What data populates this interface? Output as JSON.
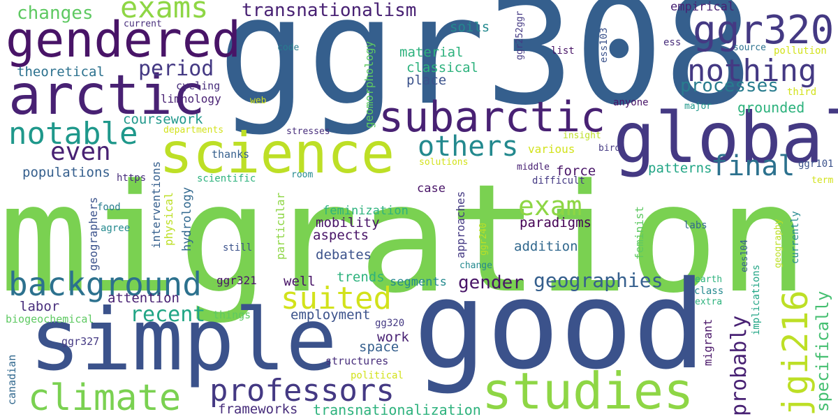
{
  "palette": {
    "yellow": "#d2e21b",
    "yellow_green": "#bddf26",
    "light_green": "#8ed645",
    "green": "#7ad151",
    "mid_green": "#5ec962",
    "green_teal": "#44bf70",
    "teal_green": "#2db27d",
    "teal": "#21a585",
    "teal_blue": "#1f988b",
    "blue_teal": "#23898e",
    "steel_blue": "#287c8e",
    "slate_blue": "#2c718e",
    "blue": "#31688e",
    "dark_blue": "#355f8d",
    "navy": "#3b528b",
    "indigo": "#404688",
    "dark_indigo": "#443983",
    "violet": "#472d7b",
    "deep_violet": "#482173",
    "dark_purple": "#481467",
    "deepest": "#440154"
  },
  "words": [
    {
      "text": "migration",
      "color": "green"
    },
    {
      "text": "ggr308",
      "color": "dark_blue"
    },
    {
      "text": "good",
      "color": "navy"
    },
    {
      "text": "simple",
      "color": "navy"
    },
    {
      "text": "science",
      "color": "yellow_green"
    },
    {
      "text": "global",
      "color": "dark_indigo"
    },
    {
      "text": "arctic",
      "color": "deep_violet"
    },
    {
      "text": "gendered",
      "color": "dark_purple"
    },
    {
      "text": "subarctic",
      "color": "deep_violet"
    },
    {
      "text": "studies",
      "color": "light_green"
    },
    {
      "text": "climate",
      "color": "green"
    },
    {
      "text": "professors",
      "color": "dark_indigo"
    },
    {
      "text": "ggr320",
      "color": "dark_indigo"
    },
    {
      "text": "background",
      "color": "slate_blue"
    },
    {
      "text": "jgi216",
      "color": "yellow_green"
    },
    {
      "text": "exams",
      "color": "light_green"
    },
    {
      "text": "nothing",
      "color": "dark_indigo"
    },
    {
      "text": "notable",
      "color": "teal_blue"
    },
    {
      "text": "suited",
      "color": "yellow"
    },
    {
      "text": "others",
      "color": "blue_teal"
    },
    {
      "text": "exam",
      "color": "light_green"
    },
    {
      "text": "final",
      "color": "slate_blue"
    },
    {
      "text": "probably",
      "color": "deep_violet"
    },
    {
      "text": "even",
      "color": "deep_violet"
    },
    {
      "text": "geographies",
      "color": "dark_blue"
    },
    {
      "text": "transnationalism",
      "color": "deep_violet"
    },
    {
      "text": "period",
      "color": "dark_indigo"
    },
    {
      "text": "specifically",
      "color": "green_teal"
    },
    {
      "text": "recent",
      "color": "teal"
    },
    {
      "text": "gender",
      "color": "dark_purple"
    },
    {
      "text": "processes",
      "color": "steel_blue"
    },
    {
      "text": "changes",
      "color": "mid_green"
    },
    {
      "text": "theoretical",
      "color": "slate_blue"
    },
    {
      "text": "grounded",
      "color": "teal_green"
    },
    {
      "text": "frameworks",
      "color": "violet"
    },
    {
      "text": "transnationalization",
      "color": "teal_green"
    },
    {
      "text": "canadian",
      "color": "blue"
    },
    {
      "text": "political",
      "color": "yellow"
    },
    {
      "text": "structures",
      "color": "violet"
    },
    {
      "text": "work",
      "color": "deep_violet"
    },
    {
      "text": "space",
      "color": "dark_blue"
    },
    {
      "text": "gg320",
      "color": "dark_indigo"
    },
    {
      "text": "employment",
      "color": "navy"
    },
    {
      "text": "things",
      "color": "mid_green"
    },
    {
      "text": "biogeochemical",
      "color": "mid_green"
    },
    {
      "text": "ggr327",
      "color": "dark_indigo"
    },
    {
      "text": "labor",
      "color": "violet"
    },
    {
      "text": "attention",
      "color": "deep_violet"
    },
    {
      "text": "ggr321",
      "color": "dark_purple"
    },
    {
      "text": "well",
      "color": "dark_purple"
    },
    {
      "text": "trends",
      "color": "teal_green"
    },
    {
      "text": "segments",
      "color": "blue_teal"
    },
    {
      "text": "debates",
      "color": "navy"
    },
    {
      "text": "aspects",
      "color": "dark_purple"
    },
    {
      "text": "mobility",
      "color": "dark_purple"
    },
    {
      "text": "feminization",
      "color": "teal_green"
    },
    {
      "text": "paradigms",
      "color": "deepest"
    },
    {
      "text": "addition",
      "color": "blue"
    },
    {
      "text": "force",
      "color": "dark_purple"
    },
    {
      "text": "case",
      "color": "dark_purple"
    },
    {
      "text": "patterns",
      "color": "teal"
    },
    {
      "text": "coursework",
      "color": "teal_blue"
    },
    {
      "text": "populations",
      "color": "dark_blue"
    },
    {
      "text": "cycling",
      "color": "violet"
    },
    {
      "text": "limnology",
      "color": "deep_violet"
    },
    {
      "text": "web",
      "color": "yellow"
    },
    {
      "text": "departments",
      "color": "yellow"
    },
    {
      "text": "thanks",
      "color": "dark_blue"
    },
    {
      "text": "https",
      "color": "violet"
    },
    {
      "text": "scientific",
      "color": "teal_green"
    },
    {
      "text": "food",
      "color": "steel_blue"
    },
    {
      "text": "agree",
      "color": "blue_teal"
    },
    {
      "text": "still",
      "color": "navy"
    },
    {
      "text": "place",
      "color": "navy"
    },
    {
      "text": "classical",
      "color": "teal_green"
    },
    {
      "text": "material",
      "color": "teal_green"
    },
    {
      "text": "soils",
      "color": "blue_teal"
    },
    {
      "text": "current",
      "color": "violet"
    },
    {
      "text": "code",
      "color": "steel_blue"
    },
    {
      "text": "stresses",
      "color": "violet"
    },
    {
      "text": "various",
      "color": "yellow"
    },
    {
      "text": "solutions",
      "color": "yellow"
    },
    {
      "text": "room",
      "color": "blue_teal"
    },
    {
      "text": "difficult",
      "color": "dark_indigo"
    },
    {
      "text": "middle",
      "color": "deep_violet"
    },
    {
      "text": "insight",
      "color": "yellow_green"
    },
    {
      "text": "bird",
      "color": "dark_indigo"
    },
    {
      "text": "anyone",
      "color": "dark_purple"
    },
    {
      "text": "list",
      "color": "dark_purple"
    },
    {
      "text": "empirical",
      "color": "deep_violet"
    },
    {
      "text": "ess",
      "color": "violet"
    },
    {
      "text": "source",
      "color": "slate_blue"
    },
    {
      "text": "pollution",
      "color": "yellow"
    },
    {
      "text": "third",
      "color": "yellow"
    },
    {
      "text": "major",
      "color": "teal_blue"
    },
    {
      "text": "ggr101",
      "color": "navy"
    },
    {
      "text": "term",
      "color": "yellow"
    },
    {
      "text": "labs",
      "color": "blue"
    },
    {
      "text": "earth",
      "color": "teal_green"
    },
    {
      "text": "class",
      "color": "blue_teal"
    },
    {
      "text": "extra",
      "color": "teal_green"
    },
    {
      "text": "change",
      "color": "blue_teal"
    },
    {
      "text": "geographers",
      "color": "navy"
    },
    {
      "text": "interventions",
      "color": "dark_blue"
    },
    {
      "text": "hydrology",
      "color": "blue"
    },
    {
      "text": "physical",
      "color": "yellow_green"
    },
    {
      "text": "geomorphology",
      "color": "mid_green"
    },
    {
      "text": "particular",
      "color": "light_green"
    },
    {
      "text": "approaches",
      "color": "dark_indigo"
    },
    {
      "text": "ggr240",
      "color": "yellow_green"
    },
    {
      "text": "ggr252ggr",
      "color": "dark_indigo"
    },
    {
      "text": "ess103",
      "color": "navy"
    },
    {
      "text": "feminist",
      "color": "mid_green"
    },
    {
      "text": "migrant",
      "color": "dark_purple"
    },
    {
      "text": "ees104",
      "color": "dark_blue"
    },
    {
      "text": "implications",
      "color": "teal"
    },
    {
      "text": "geography",
      "color": "yellow_green"
    },
    {
      "text": "currently",
      "color": "blue_teal"
    }
  ]
}
